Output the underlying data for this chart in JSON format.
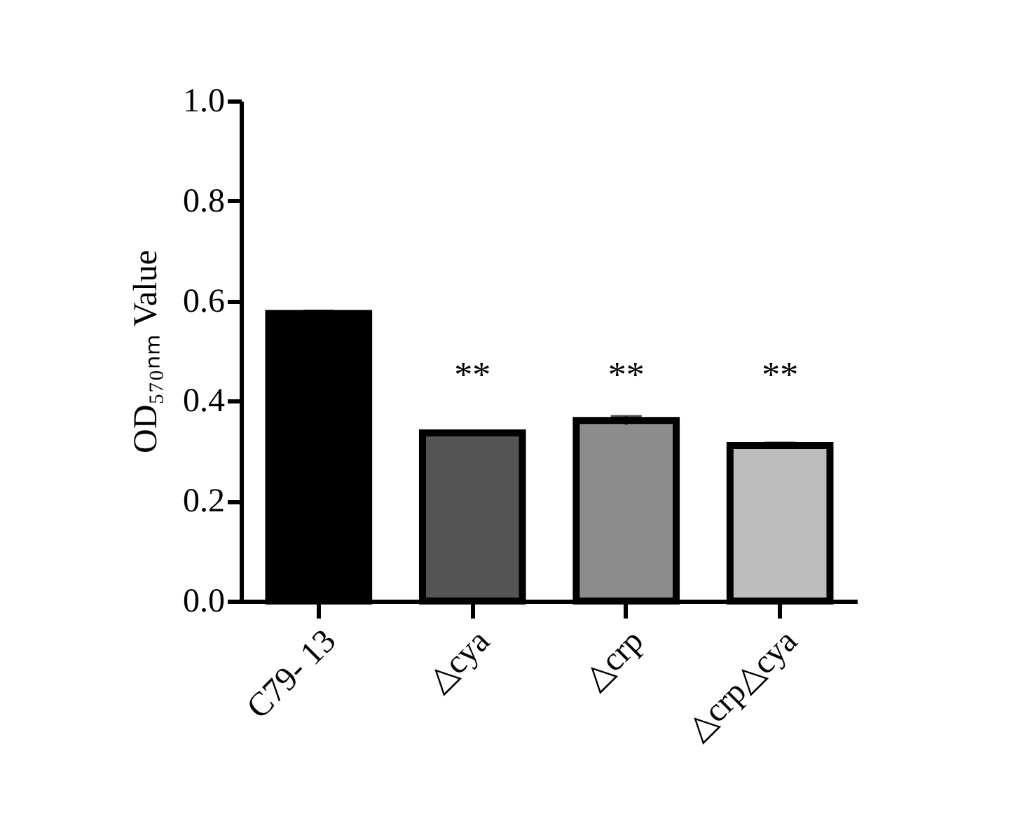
{
  "chart_data": {
    "type": "bar",
    "ylabel": "OD₅₇₀ₙₘ Value",
    "categories": [
      "C79- 13",
      "△cya",
      "△crp",
      "△crp△cya"
    ],
    "values": [
      0.575,
      0.336,
      0.361,
      0.311
    ],
    "errors": [
      0.005,
      0.004,
      0.008,
      0.005
    ],
    "colors": [
      "#000000",
      "#555555",
      "#8c8c8c",
      "#bdbdbd"
    ],
    "ylim": [
      0,
      1
    ],
    "yticks": [
      {
        "value": 0,
        "label": "0.0"
      },
      0.2,
      0.4,
      0.6,
      0.8,
      {
        "value": 1,
        "label": "1.0"
      }
    ],
    "annotations": [
      "**",
      "**",
      "**"
    ]
  }
}
